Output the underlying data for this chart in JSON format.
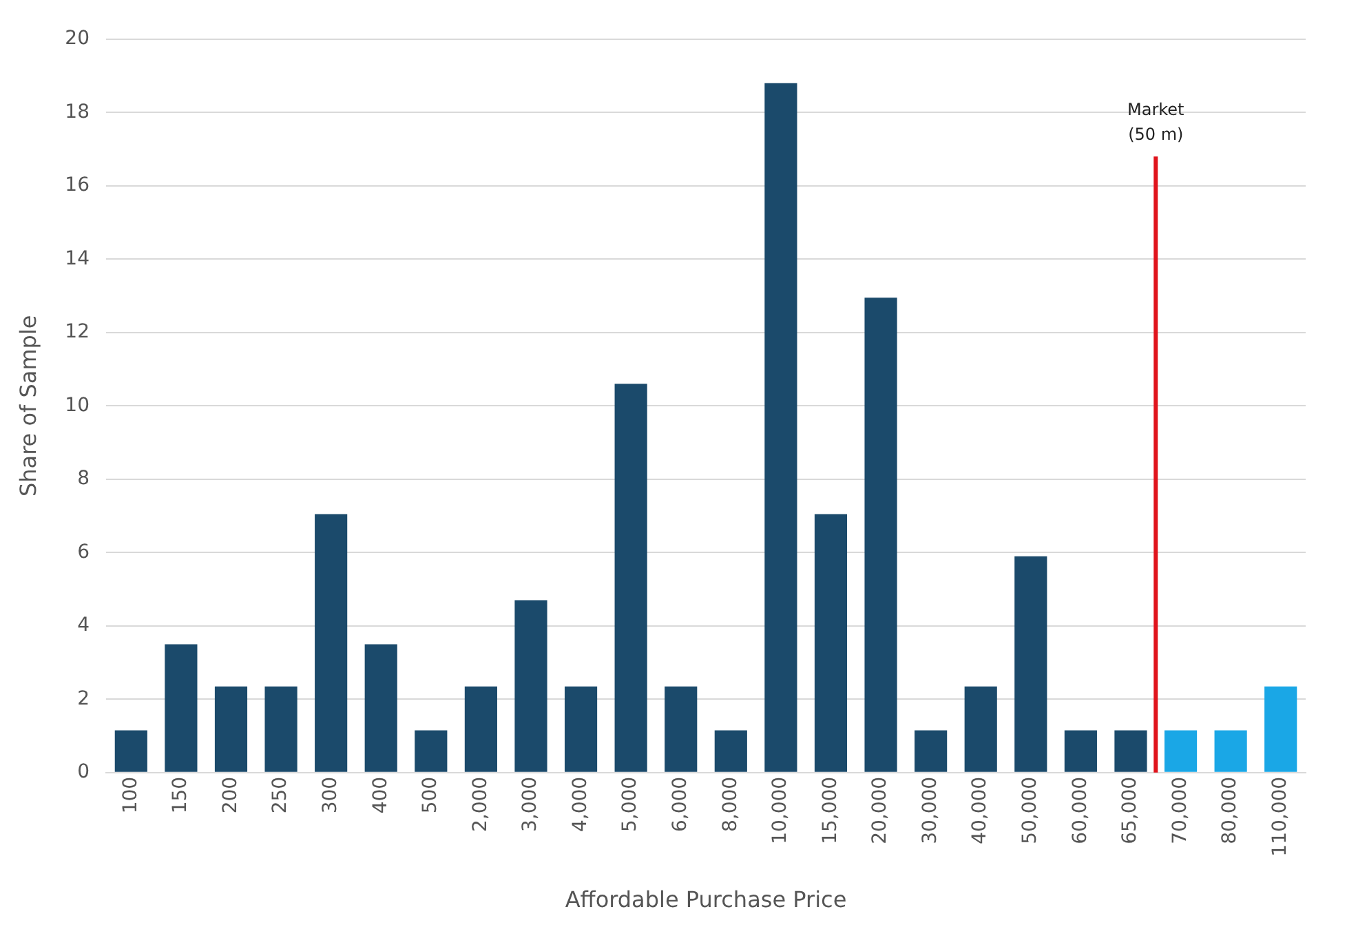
{
  "chart_data": {
    "type": "bar",
    "xlabel": "Affordable Purchase Price",
    "ylabel": "Share of Sample",
    "categories": [
      "100",
      "150",
      "200",
      "250",
      "300",
      "400",
      "500",
      "2,000",
      "3,000",
      "4,000",
      "5,000",
      "6,000",
      "8,000",
      "10,000",
      "15,000",
      "20,000",
      "30,000",
      "40,000",
      "50,000",
      "60,000",
      "65,000",
      "70,000",
      "80,000",
      "110,000"
    ],
    "values": [
      1.15,
      3.5,
      2.35,
      2.35,
      7.05,
      3.5,
      1.15,
      2.35,
      4.7,
      2.35,
      10.6,
      2.35,
      1.15,
      18.8,
      7.05,
      12.95,
      1.15,
      2.35,
      5.9,
      1.15,
      1.15,
      1.15,
      1.15,
      2.35
    ],
    "colors": [
      "#1b4a6b",
      "#1b4a6b",
      "#1b4a6b",
      "#1b4a6b",
      "#1b4a6b",
      "#1b4a6b",
      "#1b4a6b",
      "#1b4a6b",
      "#1b4a6b",
      "#1b4a6b",
      "#1b4a6b",
      "#1b4a6b",
      "#1b4a6b",
      "#1b4a6b",
      "#1b4a6b",
      "#1b4a6b",
      "#1b4a6b",
      "#1b4a6b",
      "#1b4a6b",
      "#1b4a6b",
      "#1b4a6b",
      "#1aa7e6",
      "#1aa7e6",
      "#1aa7e6"
    ],
    "ylim": [
      0,
      20
    ],
    "yticks": [
      0,
      2,
      4,
      6,
      8,
      10,
      12,
      14,
      16,
      18,
      20
    ],
    "grid": "y",
    "legend": false,
    "ref_lines": [
      {
        "axis": "x",
        "value": "65,000",
        "label": "Market (50 m)",
        "color": "#e0141c"
      }
    ]
  }
}
